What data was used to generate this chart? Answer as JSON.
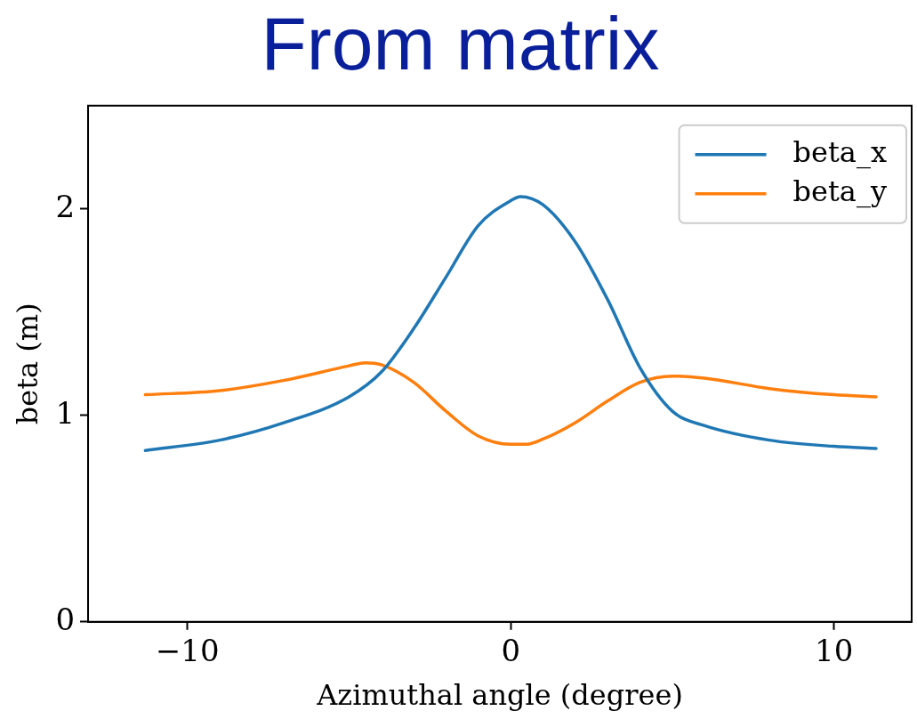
{
  "chart_data": {
    "type": "line",
    "title": "From matrix",
    "xlabel": "Azimuthal angle (degree)",
    "ylabel": "beta (m)",
    "xlim": [
      -13.07,
      12.4
    ],
    "ylim": [
      0,
      2.5
    ],
    "xticks": [
      {
        "value": -10,
        "label": "−10"
      },
      0,
      10
    ],
    "yticks": [
      0,
      1,
      2
    ],
    "grid": false,
    "legend": "top right",
    "marker": "none",
    "line_style": "solid",
    "series": [
      {
        "name": "beta_x",
        "color": "#1f77b4",
        "x": [
          -11.3,
          -9,
          -7,
          -5,
          -4,
          -3,
          -2,
          -1,
          0,
          0.3,
          1,
          2,
          3,
          4,
          5,
          6,
          8,
          10,
          11.3
        ],
        "values": [
          0.83,
          0.88,
          0.965,
          1.09,
          1.21,
          1.42,
          1.67,
          1.92,
          2.04,
          2.06,
          2.02,
          1.84,
          1.56,
          1.23,
          1.02,
          0.95,
          0.88,
          0.85,
          0.84
        ]
      },
      {
        "name": "beta_y",
        "color": "#ff7f0e",
        "x": [
          -11.3,
          -9,
          -7,
          -5,
          -4.5,
          -4,
          -3,
          -2,
          -1,
          0,
          0.5,
          1,
          2,
          3,
          4,
          5,
          6,
          8,
          10,
          11.3
        ],
        "values": [
          1.1,
          1.12,
          1.17,
          1.24,
          1.255,
          1.245,
          1.16,
          1.02,
          0.9,
          0.86,
          0.86,
          0.885,
          0.965,
          1.07,
          1.16,
          1.19,
          1.18,
          1.13,
          1.1,
          1.09
        ]
      }
    ]
  }
}
